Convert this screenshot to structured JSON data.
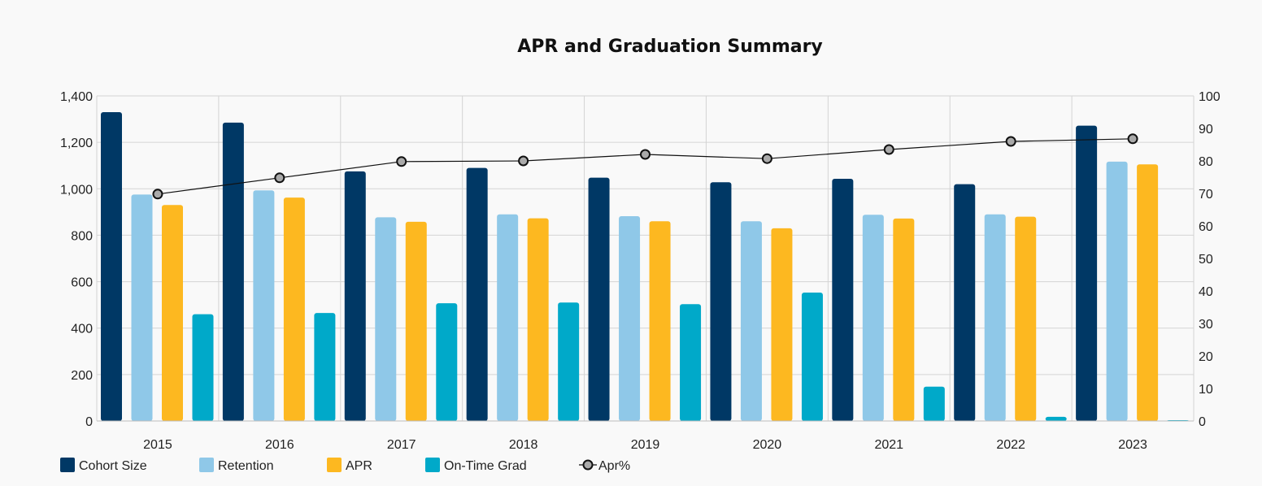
{
  "chart_data": {
    "type": "bar",
    "title": "APR and Graduation Summary",
    "categories": [
      "2015",
      "2016",
      "2017",
      "2018",
      "2019",
      "2020",
      "2021",
      "2022",
      "2023"
    ],
    "series": [
      {
        "name": "Cohort Size",
        "color": "#003865",
        "axis": "left",
        "values": [
          1330,
          1285,
          1075,
          1090,
          1048,
          1028,
          1043,
          1020,
          1272
        ]
      },
      {
        "name": "Retention",
        "color": "#8fc8e8",
        "axis": "left",
        "values": [
          975,
          993,
          877,
          890,
          882,
          860,
          888,
          890,
          1117
        ]
      },
      {
        "name": "APR",
        "color": "#fdb820",
        "axis": "left",
        "values": [
          930,
          962,
          858,
          873,
          860,
          830,
          872,
          880,
          1105
        ]
      },
      {
        "name": "On-Time Grad",
        "color": "#00a9c9",
        "axis": "left",
        "values": [
          460,
          465,
          507,
          510,
          503,
          553,
          148,
          18,
          3
        ]
      }
    ],
    "line_series": {
      "name": "Apr%",
      "type": "line",
      "axis": "right",
      "color": "#111111",
      "marker_fill": "#aaaaaa",
      "values": [
        69.8,
        74.8,
        79.8,
        80.0,
        82.0,
        80.7,
        83.5,
        86.0,
        86.8
      ]
    },
    "left_axis": {
      "ylim": [
        0,
        1400
      ],
      "ticks": [
        "0",
        "200",
        "400",
        "600",
        "800",
        "1,000",
        "1,200",
        "1,400"
      ]
    },
    "right_axis": {
      "ylim": [
        0,
        100
      ],
      "ticks": [
        "0",
        "10",
        "20",
        "30",
        "40",
        "50",
        "60",
        "70",
        "80",
        "90",
        "100"
      ]
    },
    "grid": true,
    "legend_position": "bottom-left"
  }
}
